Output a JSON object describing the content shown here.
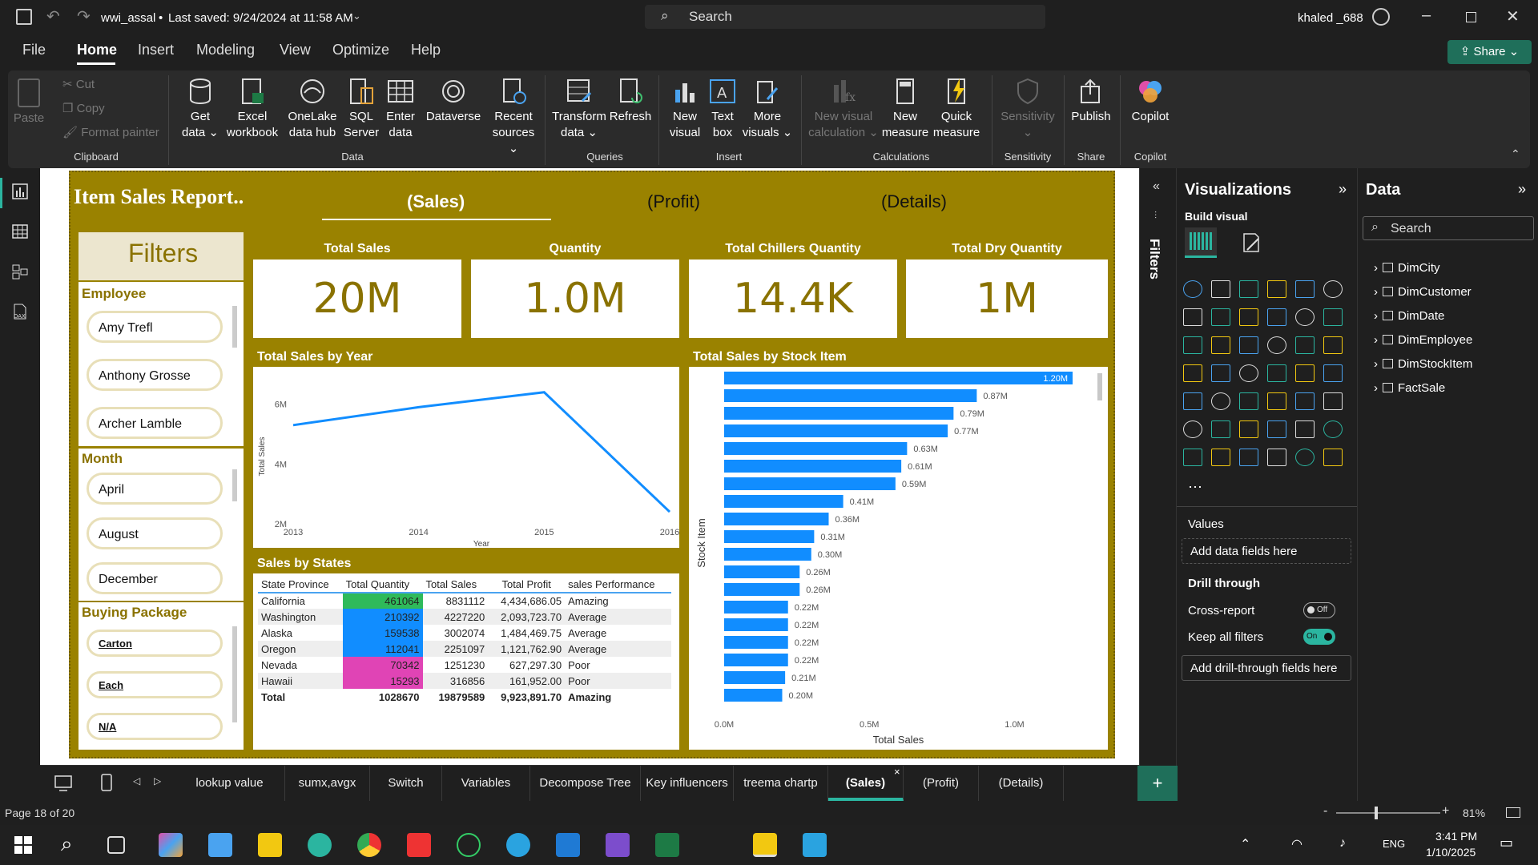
{
  "window": {
    "file": "wwi_assal",
    "saved": "Last saved: 9/24/2024 at 11:58 AM",
    "search": "Search",
    "user": "khaled _688"
  },
  "menu": [
    "File",
    "Home",
    "Insert",
    "Modeling",
    "View",
    "Optimize",
    "Help"
  ],
  "share": "Share",
  "ribbon": {
    "clipboard": {
      "paste": "Paste",
      "cut": "Cut",
      "copy": "Copy",
      "format_painter": "Format painter",
      "group": "Clipboard"
    },
    "data": {
      "get_data": "Get data",
      "excel": "Excel workbook",
      "onelake": "OneLake data hub",
      "sql": "SQL Server",
      "enter": "Enter data",
      "dataverse": "Dataverse",
      "recent": "Recent sources",
      "group": "Data"
    },
    "queries": {
      "transform": "Transform data",
      "refresh": "Refresh",
      "group": "Queries"
    },
    "insert": {
      "new_visual": "New visual",
      "text_box": "Text box",
      "more_visuals": "More visuals",
      "group": "Insert"
    },
    "calculations": {
      "new_visual_calc": "New visual calculation",
      "new_measure": "New measure",
      "quick_measure": "Quick measure",
      "group": "Calculations"
    },
    "sensitivity": {
      "label": "Sensitivity",
      "group": "Sensitivity"
    },
    "share": {
      "publish": "Publish",
      "group": "Share"
    },
    "copilot": {
      "label": "Copilot",
      "group": "Copilot"
    }
  },
  "report": {
    "title": "Item Sales Report..",
    "tabs": [
      "(Sales)",
      "(Profit)",
      "(Details)"
    ],
    "filters_title": "Filters",
    "employee": {
      "title": "Employee",
      "items": [
        "Amy Trefl",
        "Anthony Grosse",
        "Archer Lamble"
      ]
    },
    "month": {
      "title": "Month",
      "items": [
        "April",
        "August",
        "December"
      ]
    },
    "buying": {
      "title": "Buying Package",
      "items": [
        "Carton",
        "Each",
        "N/A"
      ]
    },
    "cards": [
      {
        "label": "Total Sales",
        "value": "20M"
      },
      {
        "label": "Quantity",
        "value": "1.0M"
      },
      {
        "label": "Total Chillers Quantity",
        "value": "14.4K"
      },
      {
        "label": "Total Dry Quantity",
        "value": "1M"
      }
    ],
    "line_title": "Total Sales by Year",
    "bar_title": "Total Sales by Stock Item",
    "table_title": "Sales by States",
    "table": {
      "headers": [
        "State Province",
        "Total Quantity",
        "Total Sales",
        "Total Profit",
        "sales Performance"
      ],
      "rows": [
        [
          "California",
          "461064",
          "8831112",
          "4,434,686.05",
          "Amazing"
        ],
        [
          "Washington",
          "210392",
          "4227220",
          "2,093,723.70",
          "Average"
        ],
        [
          "Alaska",
          "159538",
          "3002074",
          "1,484,469.75",
          "Average"
        ],
        [
          "Oregon",
          "112041",
          "2251097",
          "1,121,762.90",
          "Average"
        ],
        [
          "Nevada",
          "70342",
          "1251230",
          "627,297.30",
          "Poor"
        ],
        [
          "Hawaii",
          "15293",
          "316856",
          "161,952.00",
          "Poor"
        ]
      ],
      "total": [
        "Total",
        "1028670",
        "19879589",
        "9,923,891.70",
        "Amazing"
      ]
    }
  },
  "chart_data": [
    {
      "type": "line",
      "title": "Total Sales by Year",
      "xlabel": "Year",
      "ylabel": "Total Sales",
      "x": [
        2013,
        2014,
        2015,
        2016
      ],
      "values": [
        5.3,
        5.9,
        6.4,
        2.4
      ],
      "yticks": [
        "2M",
        "4M",
        "6M"
      ],
      "ylim": [
        2,
        6.5
      ],
      "unit": "M",
      "color": "#118dff"
    },
    {
      "type": "bar",
      "title": "Total Sales by Stock Item",
      "xlabel": "Total Sales",
      "ylabel": "Stock Item",
      "values": [
        1.2,
        0.87,
        0.79,
        0.77,
        0.63,
        0.61,
        0.59,
        0.41,
        0.36,
        0.31,
        0.3,
        0.26,
        0.26,
        0.22,
        0.22,
        0.22,
        0.22,
        0.21,
        0.2
      ],
      "labels": [
        "1.20M",
        "0.87M",
        "0.79M",
        "0.77M",
        "0.63M",
        "0.61M",
        "0.59M",
        "0.41M",
        "0.36M",
        "0.31M",
        "0.30M",
        "0.26M",
        "0.26M",
        "0.22M",
        "0.22M",
        "0.22M",
        "0.22M",
        "0.21M",
        "0.20M"
      ],
      "xticks": [
        "0.0M",
        "0.5M",
        "1.0M"
      ],
      "xlim": [
        0,
        1.2
      ],
      "color": "#118dff"
    }
  ],
  "panels": {
    "filters": "Filters",
    "viz": "Visualizations",
    "build": "Build visual",
    "values": "Values",
    "add_fields": "Add data fields here",
    "drill": "Drill through",
    "cross": "Cross-report",
    "cross_state": "Off",
    "keep": "Keep all filters",
    "keep_state": "On",
    "add_drill": "Add drill-through fields here",
    "data": "Data",
    "data_search": "Search",
    "tables": [
      "DimCity",
      "DimCustomer",
      "DimDate",
      "DimEmployee",
      "DimStockItem",
      "FactSale"
    ]
  },
  "pages": [
    "lookup value",
    "sumx,avgx",
    "Switch",
    "Variables",
    "Decompose Tree",
    "Key influencers",
    "treema chartp",
    "(Sales)",
    "(Profit)",
    "(Details)"
  ],
  "status": {
    "page": "Page 18 of 20",
    "zoom": "81%"
  },
  "taskbar": {
    "time": "3:41 PM",
    "date": "1/10/2025",
    "lang": "ENG"
  }
}
